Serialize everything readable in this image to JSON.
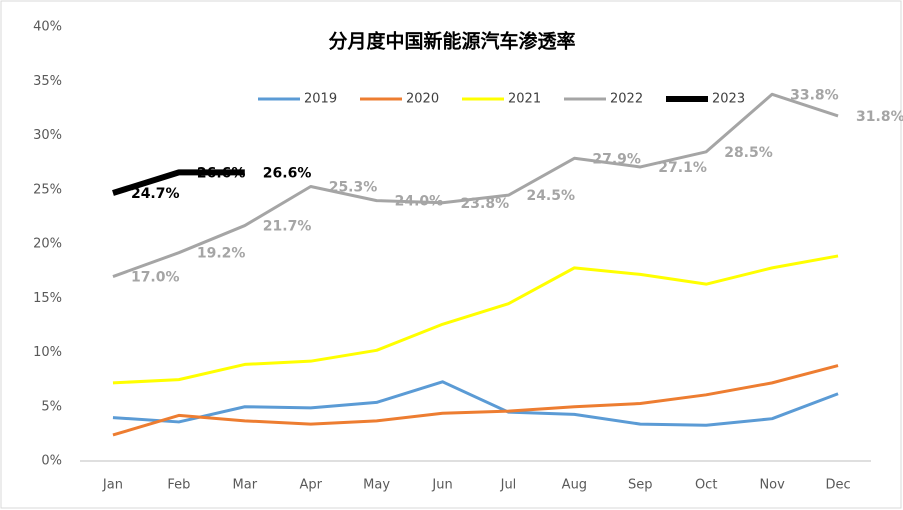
{
  "chart_data": {
    "type": "line",
    "title": "分月度中国新能源汽车渗透率",
    "categories": [
      "Jan",
      "Feb",
      "Mar",
      "Apr",
      "May",
      "Jun",
      "Jul",
      "Aug",
      "Sep",
      "Oct",
      "Nov",
      "Dec"
    ],
    "ylim": [
      0,
      40
    ],
    "yticks": [
      {
        "value": 0,
        "label": "0%"
      },
      {
        "value": 5,
        "label": "5%"
      },
      {
        "value": 10,
        "label": "10%"
      },
      {
        "value": 15,
        "label": "15%"
      },
      {
        "value": 20,
        "label": "20%"
      },
      {
        "value": 25,
        "label": "25%"
      },
      {
        "value": 30,
        "label": "30%"
      },
      {
        "value": 35,
        "label": "35%"
      },
      {
        "value": 40,
        "label": "40%"
      }
    ],
    "grid": false,
    "legend": "top",
    "series": [
      {
        "name": "2019",
        "color": "#5b9bd5",
        "values": [
          4.0,
          3.6,
          5.0,
          4.9,
          5.4,
          7.3,
          4.5,
          4.3,
          3.4,
          3.3,
          3.9,
          6.2
        ]
      },
      {
        "name": "2020",
        "color": "#ed7d31",
        "values": [
          2.4,
          4.2,
          3.7,
          3.4,
          3.7,
          4.4,
          4.6,
          5.0,
          5.3,
          6.1,
          7.2,
          8.8
        ]
      },
      {
        "name": "2021",
        "color": "#ffff00",
        "values": [
          7.2,
          7.5,
          8.9,
          9.2,
          10.2,
          12.6,
          14.5,
          17.8,
          17.2,
          16.3,
          17.8,
          18.9
        ]
      },
      {
        "name": "2022",
        "color": "#a5a5a5",
        "values": [
          17.0,
          19.2,
          21.7,
          25.3,
          24.0,
          23.8,
          24.5,
          27.9,
          27.1,
          28.5,
          33.8,
          31.8
        ],
        "value_labels": [
          "17.0%",
          "19.2%",
          "21.7%",
          "25.3%",
          "24.0%",
          "23.8%",
          "24.5%",
          "27.9%",
          "27.1%",
          "28.5%",
          "33.8%",
          "31.8%"
        ]
      },
      {
        "name": "2023",
        "color": "#000000",
        "values": [
          24.7,
          26.6,
          26.6,
          null,
          null,
          null,
          null,
          null,
          null,
          null,
          null,
          null
        ],
        "value_labels": [
          "24.7%",
          "26.6%",
          "26.6%",
          null,
          null,
          null,
          null,
          null,
          null,
          null,
          null,
          null
        ]
      }
    ]
  }
}
